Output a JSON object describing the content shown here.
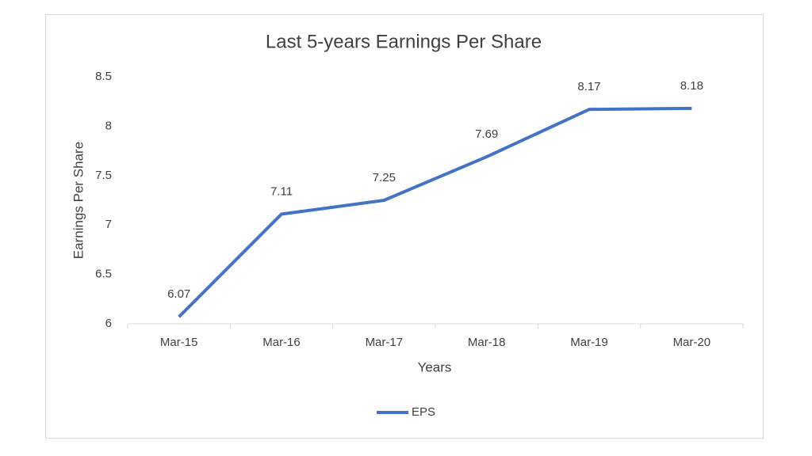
{
  "chart_data": {
    "type": "line",
    "title": "Last 5-years Earnings Per Share",
    "x_label": "Years",
    "y_label": "Earnings Per Share",
    "categories": [
      "Mar-15",
      "Mar-16",
      "Mar-17",
      "Mar-18",
      "Mar-19",
      "Mar-20"
    ],
    "series": [
      {
        "name": "EPS",
        "color": "#4472c4",
        "values": [
          6.07,
          7.11,
          7.25,
          7.69,
          8.17,
          8.18
        ]
      }
    ],
    "ylim": [
      6,
      8.5
    ],
    "yticks": [
      6,
      6.5,
      7,
      7.5,
      8,
      8.5
    ],
    "grid": false,
    "legend": "bottom",
    "data_labels": true
  }
}
